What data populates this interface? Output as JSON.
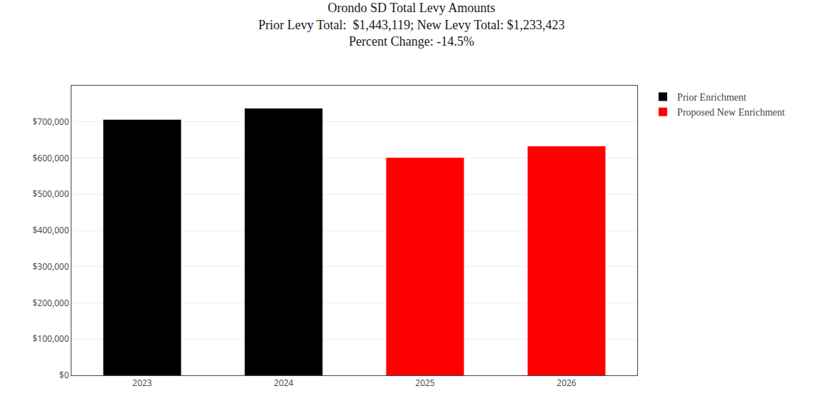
{
  "chart_data": {
    "type": "bar",
    "title": "Orondo SD Total Levy Amounts",
    "subtitle": [
      "Prior Levy Total:  $1,443,119; New Levy Total: $1,233,423",
      "Percent Change: -14.5%"
    ],
    "categories": [
      "2023",
      "2024",
      "2025",
      "2026"
    ],
    "series": [
      {
        "name": "Prior Enrichment",
        "color": "#000000",
        "values": [
          706119,
          737000,
          null,
          null
        ]
      },
      {
        "name": "Proposed New Enrichment",
        "color": "#ff0000",
        "values": [
          null,
          null,
          601000,
          632423
        ]
      }
    ],
    "ylim": [
      0,
      800000
    ],
    "yticks": [
      {
        "value": 0,
        "label": "$0"
      },
      {
        "value": 100000,
        "label": "$100,000"
      },
      {
        "value": 200000,
        "label": "$200,000"
      },
      {
        "value": 300000,
        "label": "$300,000"
      },
      {
        "value": 400000,
        "label": "$400,000"
      },
      {
        "value": 500000,
        "label": "$500,000"
      },
      {
        "value": 600000,
        "label": "$600,000"
      },
      {
        "value": 700000,
        "label": "$700,000"
      }
    ],
    "grid": true,
    "legend": "right"
  }
}
